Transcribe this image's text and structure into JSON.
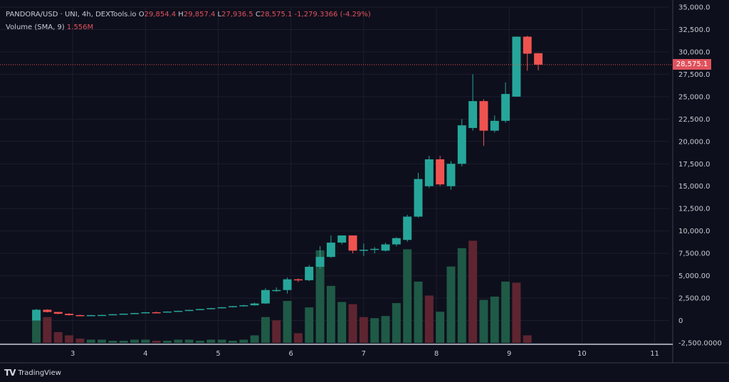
{
  "header": {
    "symbol": "PANDORA/USD · UNI, 4h, DEXTools.io",
    "o_label": "O",
    "o_value": "29,854.4",
    "h_label": "H",
    "h_value": "29,857.4",
    "l_label": "L",
    "l_value": "27,936.5",
    "c_label": "C",
    "c_value": "28,575.1",
    "change": "-1,279.3366 (-4.29%)",
    "volume_label": "Volume (SMA, 9)",
    "volume_value": "1.556M"
  },
  "brand": {
    "logo": "TV",
    "name": "TradingView"
  },
  "last_price_label": "28,575.1",
  "colors": {
    "background": "#0e0f1c",
    "up": "#26a69a",
    "down": "#ef5350",
    "vol_up": "#1f5a46",
    "vol_down": "#5e2530",
    "grid": "#1c1f2e",
    "text": "#c8cad4"
  },
  "chart_data": {
    "type": "candlestick",
    "y_ticks": [
      "35,000.0",
      "32,500.0",
      "30,000.0",
      "27,500.0",
      "25,000.0",
      "22,500.0",
      "20,000.0",
      "17,500.0",
      "15,000.0",
      "12,500.0",
      "10,000.0",
      "7,500.00",
      "5,000.00",
      "2,500.00",
      "0",
      "-2,500.0000"
    ],
    "y_tick_values": [
      35000,
      32500,
      30000,
      27500,
      25000,
      22500,
      20000,
      17500,
      15000,
      12500,
      10000,
      7500,
      5000,
      2500,
      0,
      -2500
    ],
    "ylim": [
      -2500,
      35000
    ],
    "x_ticks": [
      "3",
      "4",
      "5",
      "6",
      "7",
      "8",
      "9",
      "10",
      "11"
    ],
    "x_tick_values": [
      3,
      4,
      5,
      6,
      7,
      8,
      9,
      10,
      11
    ],
    "xlim": [
      2.0,
      11.2
    ],
    "last_price": 28575.1,
    "candles": [
      {
        "t": 2.5,
        "o": 0,
        "h": 1300,
        "l": 0,
        "c": 1200
      },
      {
        "t": 2.65,
        "o": 1200,
        "h": 1250,
        "l": 900,
        "c": 950
      },
      {
        "t": 2.8,
        "o": 950,
        "h": 950,
        "l": 700,
        "c": 750
      },
      {
        "t": 2.95,
        "o": 750,
        "h": 800,
        "l": 550,
        "c": 600
      },
      {
        "t": 3.1,
        "o": 600,
        "h": 650,
        "l": 500,
        "c": 550
      },
      {
        "t": 3.25,
        "o": 550,
        "h": 620,
        "l": 520,
        "c": 600
      },
      {
        "t": 3.4,
        "o": 600,
        "h": 650,
        "l": 560,
        "c": 620
      },
      {
        "t": 3.55,
        "o": 620,
        "h": 720,
        "l": 600,
        "c": 700
      },
      {
        "t": 3.7,
        "o": 700,
        "h": 780,
        "l": 680,
        "c": 760
      },
      {
        "t": 3.85,
        "o": 760,
        "h": 850,
        "l": 740,
        "c": 830
      },
      {
        "t": 4.0,
        "o": 830,
        "h": 950,
        "l": 810,
        "c": 920
      },
      {
        "t": 4.15,
        "o": 920,
        "h": 1000,
        "l": 880,
        "c": 900
      },
      {
        "t": 4.3,
        "o": 900,
        "h": 1020,
        "l": 890,
        "c": 1000
      },
      {
        "t": 4.45,
        "o": 1000,
        "h": 1100,
        "l": 980,
        "c": 1080
      },
      {
        "t": 4.6,
        "o": 1080,
        "h": 1200,
        "l": 1050,
        "c": 1180
      },
      {
        "t": 4.75,
        "o": 1180,
        "h": 1300,
        "l": 1150,
        "c": 1280
      },
      {
        "t": 4.9,
        "o": 1280,
        "h": 1400,
        "l": 1250,
        "c": 1380
      },
      {
        "t": 5.05,
        "o": 1380,
        "h": 1500,
        "l": 1350,
        "c": 1480
      },
      {
        "t": 5.2,
        "o": 1480,
        "h": 1620,
        "l": 1460,
        "c": 1600
      },
      {
        "t": 5.35,
        "o": 1600,
        "h": 1750,
        "l": 1580,
        "c": 1700
      },
      {
        "t": 5.5,
        "o": 1700,
        "h": 2000,
        "l": 1650,
        "c": 1900
      },
      {
        "t": 5.65,
        "o": 1900,
        "h": 3600,
        "l": 1850,
        "c": 3400
      },
      {
        "t": 5.8,
        "o": 3400,
        "h": 3700,
        "l": 3200,
        "c": 3400
      },
      {
        "t": 5.95,
        "o": 3400,
        "h": 4800,
        "l": 3000,
        "c": 4600
      },
      {
        "t": 6.1,
        "o": 4600,
        "h": 4700,
        "l": 4300,
        "c": 4500
      },
      {
        "t": 6.25,
        "o": 4500,
        "h": 6200,
        "l": 4400,
        "c": 6000
      },
      {
        "t": 6.4,
        "o": 6000,
        "h": 8300,
        "l": 5800,
        "c": 7100
      },
      {
        "t": 6.55,
        "o": 7100,
        "h": 9500,
        "l": 7000,
        "c": 8700
      },
      {
        "t": 6.7,
        "o": 8700,
        "h": 9500,
        "l": 8500,
        "c": 9500
      },
      {
        "t": 6.85,
        "o": 9500,
        "h": 9500,
        "l": 7500,
        "c": 7800
      },
      {
        "t": 7.0,
        "o": 7800,
        "h": 8600,
        "l": 7200,
        "c": 7900
      },
      {
        "t": 7.15,
        "o": 7900,
        "h": 8200,
        "l": 7500,
        "c": 8000
      },
      {
        "t": 7.3,
        "o": 7800,
        "h": 8700,
        "l": 7700,
        "c": 8500
      },
      {
        "t": 7.45,
        "o": 8500,
        "h": 9300,
        "l": 8300,
        "c": 9200
      },
      {
        "t": 7.6,
        "o": 9000,
        "h": 11800,
        "l": 8800,
        "c": 11600
      },
      {
        "t": 7.75,
        "o": 11600,
        "h": 16500,
        "l": 11500,
        "c": 15800
      },
      {
        "t": 7.9,
        "o": 15000,
        "h": 18400,
        "l": 14800,
        "c": 18000
      },
      {
        "t": 8.05,
        "o": 18000,
        "h": 18400,
        "l": 15000,
        "c": 15200
      },
      {
        "t": 8.2,
        "o": 15000,
        "h": 17800,
        "l": 14600,
        "c": 17500
      },
      {
        "t": 8.35,
        "o": 17500,
        "h": 22500,
        "l": 17200,
        "c": 21800
      },
      {
        "t": 8.5,
        "o": 21500,
        "h": 27500,
        "l": 21200,
        "c": 24500
      },
      {
        "t": 8.65,
        "o": 24500,
        "h": 24700,
        "l": 19500,
        "c": 21200
      },
      {
        "t": 8.8,
        "o": 21200,
        "h": 22900,
        "l": 21000,
        "c": 22300
      },
      {
        "t": 8.95,
        "o": 22300,
        "h": 26600,
        "l": 22100,
        "c": 25300
      },
      {
        "t": 9.1,
        "o": 25000,
        "h": 31700,
        "l": 25000,
        "c": 31700
      },
      {
        "t": 9.25,
        "o": 31700,
        "h": 31800,
        "l": 27900,
        "c": 29800
      },
      {
        "t": 9.4,
        "o": 29854.4,
        "h": 29857.4,
        "l": 27936.5,
        "c": 28575.1
      }
    ],
    "volume": [
      {
        "t": 2.5,
        "v": 2900,
        "up": true
      },
      {
        "t": 2.65,
        "v": 2400,
        "up": false
      },
      {
        "t": 2.8,
        "v": 1000,
        "up": false
      },
      {
        "t": 2.95,
        "v": 700,
        "up": false
      },
      {
        "t": 3.1,
        "v": 400,
        "up": false
      },
      {
        "t": 3.25,
        "v": 300,
        "up": true
      },
      {
        "t": 3.4,
        "v": 300,
        "up": true
      },
      {
        "t": 3.55,
        "v": 200,
        "up": true
      },
      {
        "t": 3.7,
        "v": 200,
        "up": true
      },
      {
        "t": 3.85,
        "v": 300,
        "up": true
      },
      {
        "t": 4.0,
        "v": 300,
        "up": true
      },
      {
        "t": 4.15,
        "v": 200,
        "up": false
      },
      {
        "t": 4.3,
        "v": 200,
        "up": true
      },
      {
        "t": 4.45,
        "v": 300,
        "up": true
      },
      {
        "t": 4.6,
        "v": 300,
        "up": true
      },
      {
        "t": 4.75,
        "v": 200,
        "up": true
      },
      {
        "t": 4.9,
        "v": 300,
        "up": true
      },
      {
        "t": 5.05,
        "v": 300,
        "up": true
      },
      {
        "t": 5.2,
        "v": 200,
        "up": true
      },
      {
        "t": 5.35,
        "v": 300,
        "up": true
      },
      {
        "t": 5.5,
        "v": 700,
        "up": true
      },
      {
        "t": 5.65,
        "v": 2400,
        "up": true
      },
      {
        "t": 5.8,
        "v": 2100,
        "up": false
      },
      {
        "t": 5.95,
        "v": 3900,
        "up": true
      },
      {
        "t": 6.1,
        "v": 900,
        "up": false
      },
      {
        "t": 6.25,
        "v": 3300,
        "up": true
      },
      {
        "t": 6.4,
        "v": 8600,
        "up": true
      },
      {
        "t": 6.55,
        "v": 5300,
        "up": true
      },
      {
        "t": 6.7,
        "v": 3800,
        "up": true
      },
      {
        "t": 6.85,
        "v": 3600,
        "up": false
      },
      {
        "t": 7.0,
        "v": 2400,
        "up": false
      },
      {
        "t": 7.15,
        "v": 2300,
        "up": true
      },
      {
        "t": 7.3,
        "v": 2500,
        "up": true
      },
      {
        "t": 7.45,
        "v": 3700,
        "up": true
      },
      {
        "t": 7.6,
        "v": 8700,
        "up": true
      },
      {
        "t": 7.75,
        "v": 5700,
        "up": true
      },
      {
        "t": 7.9,
        "v": 4400,
        "up": false
      },
      {
        "t": 8.05,
        "v": 2900,
        "up": true
      },
      {
        "t": 8.2,
        "v": 7100,
        "up": true
      },
      {
        "t": 8.35,
        "v": 8800,
        "up": true
      },
      {
        "t": 8.5,
        "v": 9500,
        "up": false
      },
      {
        "t": 8.65,
        "v": 4000,
        "up": true
      },
      {
        "t": 8.8,
        "v": 4300,
        "up": true
      },
      {
        "t": 8.95,
        "v": 5700,
        "up": true
      },
      {
        "t": 9.1,
        "v": 5600,
        "up": false
      },
      {
        "t": 9.25,
        "v": 700,
        "up": false
      },
      {
        "t": 9.4,
        "v": 0,
        "up": false
      }
    ],
    "volume_max": 35000
  }
}
